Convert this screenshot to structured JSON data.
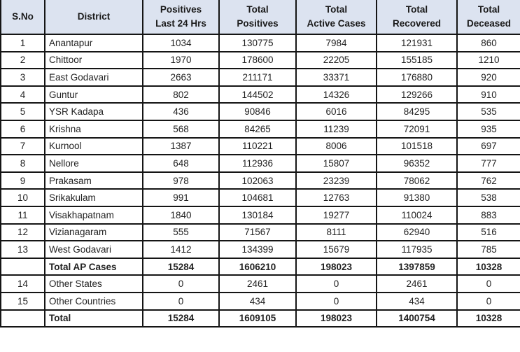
{
  "table": {
    "columns": [
      {
        "id": "s-no",
        "lines": [
          "S.No"
        ]
      },
      {
        "id": "district",
        "lines": [
          "District"
        ]
      },
      {
        "id": "positives-last-24",
        "lines": [
          "Positives",
          "Last 24 Hrs"
        ]
      },
      {
        "id": "total-positives",
        "lines": [
          "Total",
          "Positives"
        ]
      },
      {
        "id": "total-active-cases",
        "lines": [
          "Total",
          "Active Cases"
        ]
      },
      {
        "id": "total-recovered",
        "lines": [
          "Total",
          "Recovered"
        ]
      },
      {
        "id": "total-deceased",
        "lines": [
          "Total",
          "Deceased"
        ]
      }
    ],
    "rows": [
      {
        "s_no": "1",
        "district": "Anantapur",
        "values": [
          "1034",
          "130775",
          "7984",
          "121931",
          "860"
        ],
        "bold": false
      },
      {
        "s_no": "2",
        "district": "Chittoor",
        "values": [
          "1970",
          "178600",
          "22205",
          "155185",
          "1210"
        ],
        "bold": false
      },
      {
        "s_no": "3",
        "district": "East Godavari",
        "values": [
          "2663",
          "211171",
          "33371",
          "176880",
          "920"
        ],
        "bold": false
      },
      {
        "s_no": "4",
        "district": "Guntur",
        "values": [
          "802",
          "144502",
          "14326",
          "129266",
          "910"
        ],
        "bold": false
      },
      {
        "s_no": "5",
        "district": "YSR Kadapa",
        "values": [
          "436",
          "90846",
          "6016",
          "84295",
          "535"
        ],
        "bold": false
      },
      {
        "s_no": "6",
        "district": "Krishna",
        "values": [
          "568",
          "84265",
          "11239",
          "72091",
          "935"
        ],
        "bold": false
      },
      {
        "s_no": "7",
        "district": "Kurnool",
        "values": [
          "1387",
          "110221",
          "8006",
          "101518",
          "697"
        ],
        "bold": false
      },
      {
        "s_no": "8",
        "district": "Nellore",
        "values": [
          "648",
          "112936",
          "15807",
          "96352",
          "777"
        ],
        "bold": false
      },
      {
        "s_no": "9",
        "district": "Prakasam",
        "values": [
          "978",
          "102063",
          "23239",
          "78062",
          "762"
        ],
        "bold": false
      },
      {
        "s_no": "10",
        "district": "Srikakulam",
        "values": [
          "991",
          "104681",
          "12763",
          "91380",
          "538"
        ],
        "bold": false
      },
      {
        "s_no": "11",
        "district": "Visakhapatnam",
        "values": [
          "1840",
          "130184",
          "19277",
          "110024",
          "883"
        ],
        "bold": false
      },
      {
        "s_no": "12",
        "district": "Vizianagaram",
        "values": [
          "555",
          "71567",
          "8111",
          "62940",
          "516"
        ],
        "bold": false
      },
      {
        "s_no": "13",
        "district": "West Godavari",
        "values": [
          "1412",
          "134399",
          "15679",
          "117935",
          "785"
        ],
        "bold": false
      },
      {
        "s_no": "",
        "district": "Total AP Cases",
        "values": [
          "15284",
          "1606210",
          "198023",
          "1397859",
          "10328"
        ],
        "bold": true
      },
      {
        "s_no": "14",
        "district": "Other States",
        "values": [
          "0",
          "2461",
          "0",
          "2461",
          "0"
        ],
        "bold": false
      },
      {
        "s_no": "15",
        "district": "Other Countries",
        "values": [
          "0",
          "434",
          "0",
          "434",
          "0"
        ],
        "bold": false
      },
      {
        "s_no": "",
        "district": "Total",
        "values": [
          "15284",
          "1609105",
          "198023",
          "1400754",
          "10328"
        ],
        "bold": true
      }
    ],
    "colors": {
      "header_bg": "#dce3f0",
      "border": "#151515",
      "text": "#222222"
    }
  }
}
